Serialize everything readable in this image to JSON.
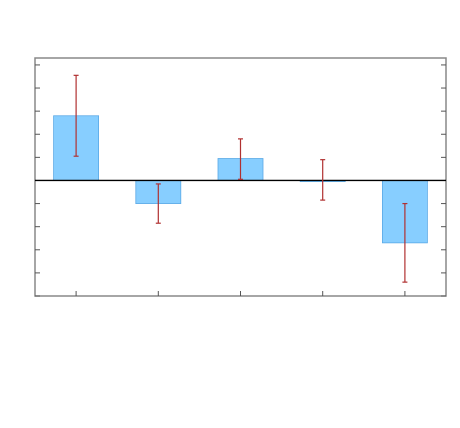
{
  "chart_data": {
    "type": "bar",
    "title": "",
    "xlabel": "",
    "ylabel": "",
    "categories": [
      "",
      "",
      "",
      "",
      ""
    ],
    "values": [
      2.8,
      -1.0,
      0.95,
      -0.05,
      -2.7
    ],
    "error_low": [
      1.05,
      -1.85,
      0.05,
      -0.85,
      -4.4
    ],
    "error_high": [
      4.55,
      -0.15,
      1.8,
      0.9,
      -1.0
    ],
    "ylim": [
      -5,
      5.3
    ],
    "yticks": [
      -5,
      -4,
      -3,
      -2,
      -1,
      0,
      1,
      2,
      3,
      4,
      5
    ],
    "grid": false,
    "bar_color": "#87ceff",
    "bar_edge_color": "#5aa9e6",
    "error_color": "#b03030",
    "zero_line_color": "#000000",
    "frame_color": "#888888"
  }
}
